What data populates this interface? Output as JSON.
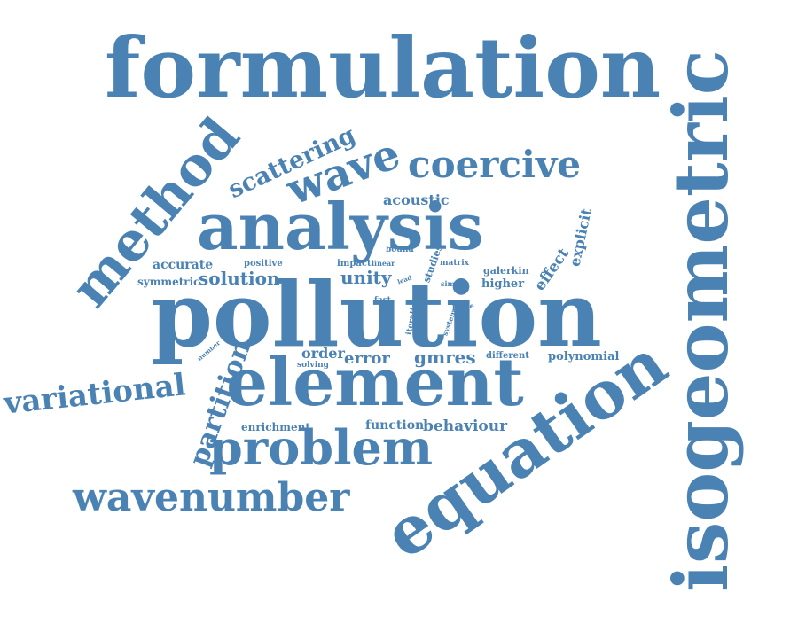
{
  "accent_color": "#4a82b4",
  "words": {
    "formulation": "formulation",
    "isogeometric": "isogeometric",
    "pollution": "pollution",
    "analysis": "analysis",
    "element": "element",
    "equation": "equation",
    "method": "method",
    "wave": "wave",
    "coercive": "coercive",
    "scattering": "scattering",
    "problem": "problem",
    "wavenumber": "wavenumber",
    "variational": "variational",
    "partition": "partition",
    "acoustic": "acoustic",
    "explicit": "explicit",
    "effect": "effect",
    "accurate": "accurate",
    "positive": "positive",
    "solution": "solution",
    "symmetric": "symmetric",
    "bound": "bound",
    "impact": "impact",
    "linear": "linear",
    "studies": "studies",
    "matrix": "matrix",
    "galerkin": "galerkin",
    "unity": "unity",
    "lead": "lead",
    "similar": "similar",
    "higher": "higher",
    "fast": "fast",
    "iteration": "iteration",
    "plane": "plane",
    "system": "system",
    "number": "number",
    "order": "order",
    "solving": "solving",
    "error": "error",
    "gmres": "gmres",
    "different": "different",
    "polynomial": "polynomial",
    "enrichment": "enrichment",
    "function": "function",
    "behaviour": "behaviour"
  }
}
